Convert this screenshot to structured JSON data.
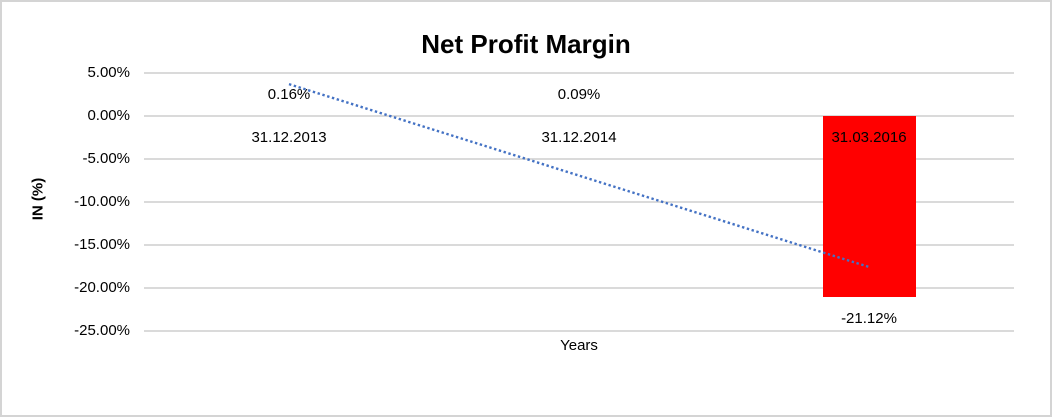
{
  "chart_data": {
    "type": "bar",
    "title": "Net Profit Margin",
    "xlabel": "Years",
    "ylabel": "IN (%)",
    "categories": [
      "31.12.2013",
      "31.12.2014",
      "31.03.2016"
    ],
    "values": [
      0.16,
      0.09,
      -21.12
    ],
    "data_labels": [
      "0.16%",
      "0.09%",
      "-21.12%"
    ],
    "ylim": [
      -25,
      5
    ],
    "ytick_step": 5,
    "yticks": [
      {
        "value": 5,
        "label": "5.00%"
      },
      {
        "value": 0,
        "label": "0.00%"
      },
      {
        "value": -5,
        "label": "-5.00%"
      },
      {
        "value": -10,
        "label": "-10.00%"
      },
      {
        "value": -15,
        "label": "-15.00%"
      },
      {
        "value": -20,
        "label": "-20.00%"
      },
      {
        "value": -25,
        "label": "-25.00%"
      }
    ],
    "grid": true,
    "legend": "none",
    "bar_color": "#FF0000",
    "gridline_color": "#DADADA",
    "text_color": "#000000",
    "trendline": {
      "type": "linear",
      "style": "dotted",
      "color": "#4472C4",
      "start_value": 3.7,
      "end_value": -17.6
    }
  }
}
